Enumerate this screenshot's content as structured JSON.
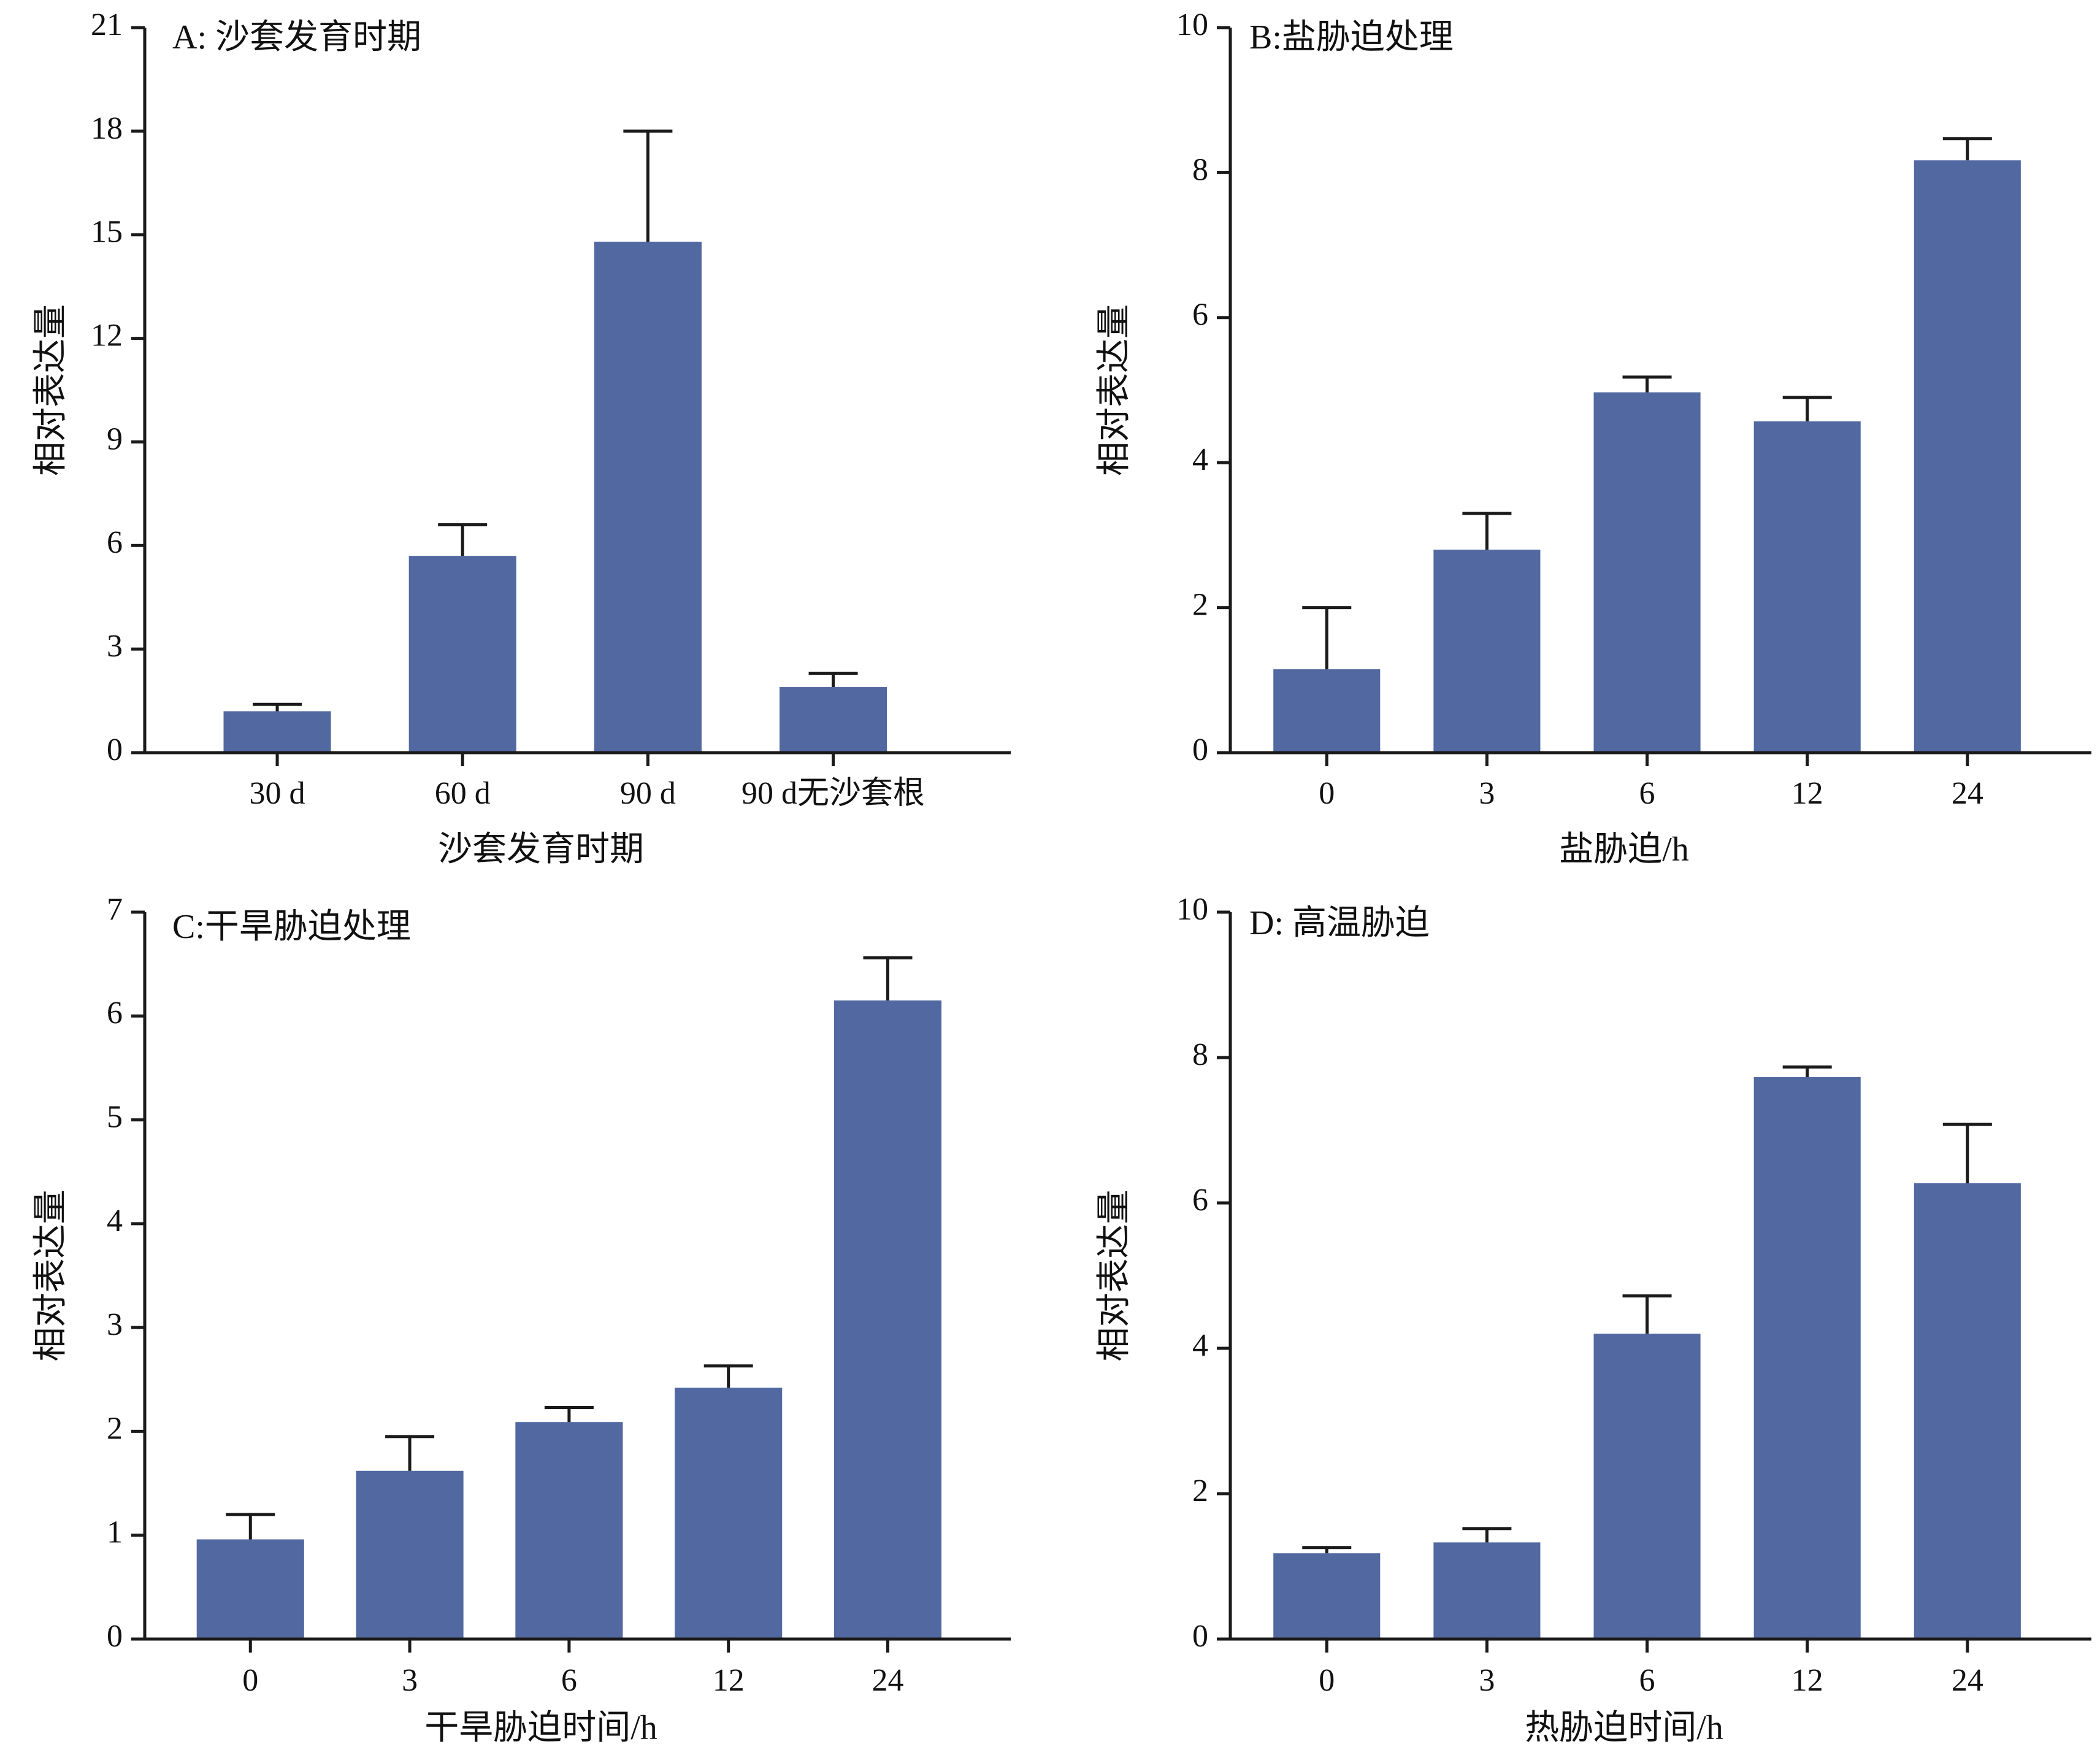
{
  "bar_color": "#5268a1",
  "chart_data": [
    {
      "type": "bar",
      "title": "A: 沙套发育时期",
      "categories": [
        "30 d",
        "60 d",
        "90 d",
        "90 d无沙套根"
      ],
      "values": [
        1.2,
        5.7,
        14.8,
        1.9
      ],
      "error": [
        0.2,
        0.9,
        3.2,
        0.4
      ],
      "xlabel": "沙套发育时期",
      "ylabel": "相对表达量",
      "ylim": [
        0,
        21
      ],
      "yticks": [
        "0",
        "3",
        "6",
        "9",
        "12",
        "15",
        "18",
        "21"
      ],
      "grid": false
    },
    {
      "type": "bar",
      "title": "B:盐胁迫处理",
      "categories": [
        "0",
        "3",
        "6",
        "12",
        "24"
      ],
      "values": [
        1.15,
        2.8,
        4.97,
        4.57,
        8.17
      ],
      "error": [
        0.85,
        0.5,
        0.21,
        0.33,
        0.3
      ],
      "xlabel": "盐胁迫/h",
      "ylabel": "相对表达量",
      "ylim": [
        0,
        10
      ],
      "yticks": [
        "0",
        "2",
        "4",
        "6",
        "8",
        "10"
      ],
      "grid": false
    },
    {
      "type": "bar",
      "title": "C:干旱胁迫处理",
      "categories": [
        "0",
        "3",
        "6",
        "12",
        "24"
      ],
      "values": [
        0.96,
        1.62,
        2.09,
        2.42,
        6.15
      ],
      "error": [
        0.24,
        0.33,
        0.14,
        0.21,
        0.41
      ],
      "xlabel": "干旱胁迫时间/h",
      "ylabel": "相对表达量",
      "ylim": [
        0,
        7
      ],
      "yticks": [
        "0",
        "1",
        "2",
        "3",
        "4",
        "5",
        "6",
        "7"
      ],
      "grid": false
    },
    {
      "type": "bar",
      "title": "D: 高温胁迫",
      "categories": [
        "0",
        "3",
        "6",
        "12",
        "24"
      ],
      "values": [
        1.18,
        1.33,
        4.2,
        7.73,
        6.27
      ],
      "error": [
        0.08,
        0.19,
        0.52,
        0.14,
        0.81
      ],
      "xlabel": "热胁迫时间/h",
      "ylabel": "相对表达量",
      "ylim": [
        0,
        10
      ],
      "yticks": [
        "0",
        "2",
        "4",
        "6",
        "8",
        "10"
      ],
      "grid": false
    }
  ]
}
